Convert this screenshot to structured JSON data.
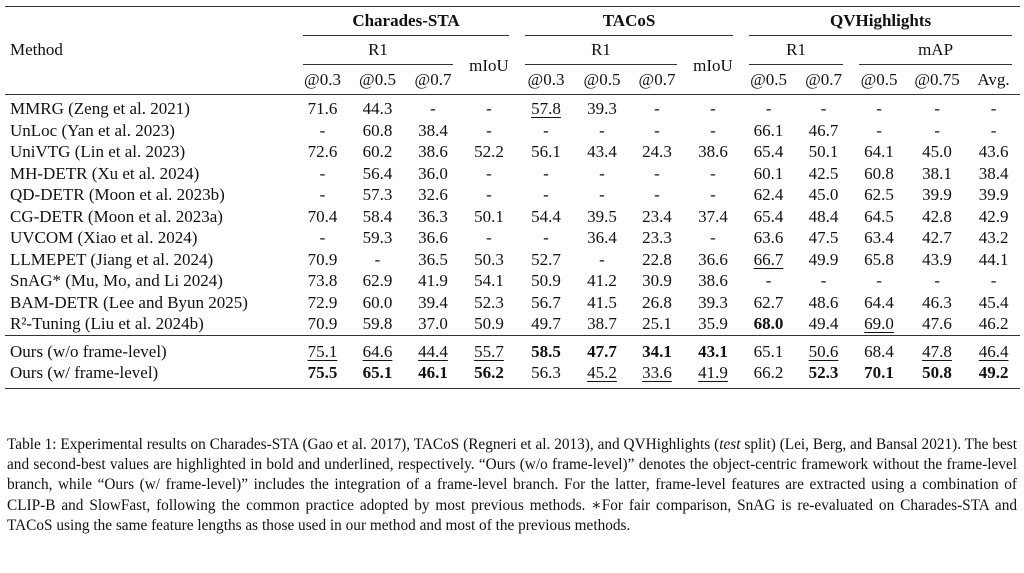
{
  "table": {
    "method_header": "Method",
    "groups": [
      "Charades-STA",
      "TACoS",
      "QVHighlights"
    ],
    "subgroups": {
      "r1": "R1",
      "miou": "mIoU",
      "map": "mAP"
    },
    "thresholds": {
      "c": [
        "@0.3",
        "@0.5",
        "@0.7"
      ],
      "t": [
        "@0.3",
        "@0.5",
        "@0.7"
      ],
      "qr1": [
        "@0.5",
        "@0.7"
      ],
      "qmap": [
        "@0.5",
        "@0.75",
        "Avg."
      ]
    },
    "rows": [
      {
        "method": "MMRG (Zeng et al. 2021)",
        "cells": [
          "71.6",
          "44.3",
          "-",
          "-",
          "57.8",
          "39.3",
          "-",
          "-",
          "-",
          "-",
          "-",
          "-",
          "-"
        ],
        "styles": [
          "",
          "",
          "",
          "",
          "u",
          "",
          "",
          "",
          "",
          "",
          "",
          "",
          ""
        ]
      },
      {
        "method": "UnLoc (Yan et al. 2023)",
        "cells": [
          "-",
          "60.8",
          "38.4",
          "-",
          "-",
          "-",
          "-",
          "-",
          "66.1",
          "46.7",
          "-",
          "-",
          "-"
        ],
        "styles": [
          "",
          "",
          "",
          "",
          "",
          "",
          "",
          "",
          "",
          "",
          "",
          "",
          ""
        ]
      },
      {
        "method": "UniVTG (Lin et al. 2023)",
        "cells": [
          "72.6",
          "60.2",
          "38.6",
          "52.2",
          "56.1",
          "43.4",
          "24.3",
          "38.6",
          "65.4",
          "50.1",
          "64.1",
          "45.0",
          "43.6"
        ],
        "styles": [
          "",
          "",
          "",
          "",
          "",
          "",
          "",
          "",
          "",
          "",
          "",
          "",
          ""
        ]
      },
      {
        "method": "MH-DETR (Xu et al. 2024)",
        "cells": [
          "-",
          "56.4",
          "36.0",
          "-",
          "-",
          "-",
          "-",
          "-",
          "60.1",
          "42.5",
          "60.8",
          "38.1",
          "38.4"
        ],
        "styles": [
          "",
          "",
          "",
          "",
          "",
          "",
          "",
          "",
          "",
          "",
          "",
          "",
          ""
        ]
      },
      {
        "method": "QD-DETR (Moon et al. 2023b)",
        "cells": [
          "-",
          "57.3",
          "32.6",
          "-",
          "-",
          "-",
          "-",
          "-",
          "62.4",
          "45.0",
          "62.5",
          "39.9",
          "39.9"
        ],
        "styles": [
          "",
          "",
          "",
          "",
          "",
          "",
          "",
          "",
          "",
          "",
          "",
          "",
          ""
        ]
      },
      {
        "method": "CG-DETR (Moon et al. 2023a)",
        "cells": [
          "70.4",
          "58.4",
          "36.3",
          "50.1",
          "54.4",
          "39.5",
          "23.4",
          "37.4",
          "65.4",
          "48.4",
          "64.5",
          "42.8",
          "42.9"
        ],
        "styles": [
          "",
          "",
          "",
          "",
          "",
          "",
          "",
          "",
          "",
          "",
          "",
          "",
          ""
        ]
      },
      {
        "method": "UVCOM (Xiao et al. 2024)",
        "cells": [
          "-",
          "59.3",
          "36.6",
          "-",
          "-",
          "36.4",
          "23.3",
          "-",
          "63.6",
          "47.5",
          "63.4",
          "42.7",
          "43.2"
        ],
        "styles": [
          "",
          "",
          "",
          "",
          "",
          "",
          "",
          "",
          "",
          "",
          "",
          "",
          ""
        ]
      },
      {
        "method": "LLMEPET (Jiang et al. 2024)",
        "cells": [
          "70.9",
          "-",
          "36.5",
          "50.3",
          "52.7",
          "-",
          "22.8",
          "36.6",
          "66.7",
          "49.9",
          "65.8",
          "43.9",
          "44.1"
        ],
        "styles": [
          "",
          "",
          "",
          "",
          "",
          "",
          "",
          "",
          "u",
          "",
          "",
          "",
          ""
        ]
      },
      {
        "method": "SnAG* (Mu, Mo, and Li 2024)",
        "cells": [
          "73.8",
          "62.9",
          "41.9",
          "54.1",
          "50.9",
          "41.2",
          "30.9",
          "38.6",
          "-",
          "-",
          "-",
          "-",
          "-"
        ],
        "styles": [
          "",
          "",
          "",
          "",
          "",
          "",
          "",
          "",
          "",
          "",
          "",
          "",
          ""
        ]
      },
      {
        "method": "BAM-DETR (Lee and Byun 2025)",
        "cells": [
          "72.9",
          "60.0",
          "39.4",
          "52.3",
          "56.7",
          "41.5",
          "26.8",
          "39.3",
          "62.7",
          "48.6",
          "64.4",
          "46.3",
          "45.4"
        ],
        "styles": [
          "",
          "",
          "",
          "",
          "",
          "",
          "",
          "",
          "",
          "",
          "",
          "",
          ""
        ]
      },
      {
        "method": "R²-Tuning (Liu et al. 2024b)",
        "cells": [
          "70.9",
          "59.8",
          "37.0",
          "50.9",
          "49.7",
          "38.7",
          "25.1",
          "35.9",
          "68.0",
          "49.4",
          "69.0",
          "47.6",
          "46.2"
        ],
        "styles": [
          "",
          "",
          "",
          "",
          "",
          "",
          "",
          "",
          "b",
          "",
          "u",
          "",
          ""
        ]
      }
    ],
    "ours": [
      {
        "method": "Ours (w/o frame-level)",
        "cells": [
          "75.1",
          "64.6",
          "44.4",
          "55.7",
          "58.5",
          "47.7",
          "34.1",
          "43.1",
          "65.1",
          "50.6",
          "68.4",
          "47.8",
          "46.4"
        ],
        "styles": [
          "u",
          "u",
          "u",
          "u",
          "b",
          "b",
          "b",
          "b",
          "",
          "u",
          "",
          "u",
          "u"
        ]
      },
      {
        "method": "Ours (w/ frame-level)",
        "cells": [
          "75.5",
          "65.1",
          "46.1",
          "56.2",
          "56.3",
          "45.2",
          "33.6",
          "41.9",
          "66.2",
          "52.3",
          "70.1",
          "50.8",
          "49.2"
        ],
        "styles": [
          "b",
          "b",
          "b",
          "b",
          "",
          "u",
          "u",
          "u",
          "",
          "b",
          "b",
          "b",
          "b"
        ]
      }
    ]
  },
  "caption": {
    "pre": "Table 1: Experimental results on Charades-STA (Gao et al. 2017), TACoS (Regneri et al. 2013), and QVHighlights (",
    "italic": "test",
    "post": " split) (Lei, Berg, and Bansal 2021). The best and second-best values are highlighted in bold and underlined, respectively. “Ours (w/o frame-level)” denotes the object-centric framework without the frame-level branch, while “Ours (w/ frame-level)” includes the integration of a frame-level branch. For the latter, frame-level features are extracted using a combination of CLIP-B and SlowFast, following the common practice adopted by most previous methods. ∗For fair comparison, SnAG is re-evaluated on Charades-STA and TACoS using the same feature lengths as those used in our method and most of the previous methods."
  }
}
